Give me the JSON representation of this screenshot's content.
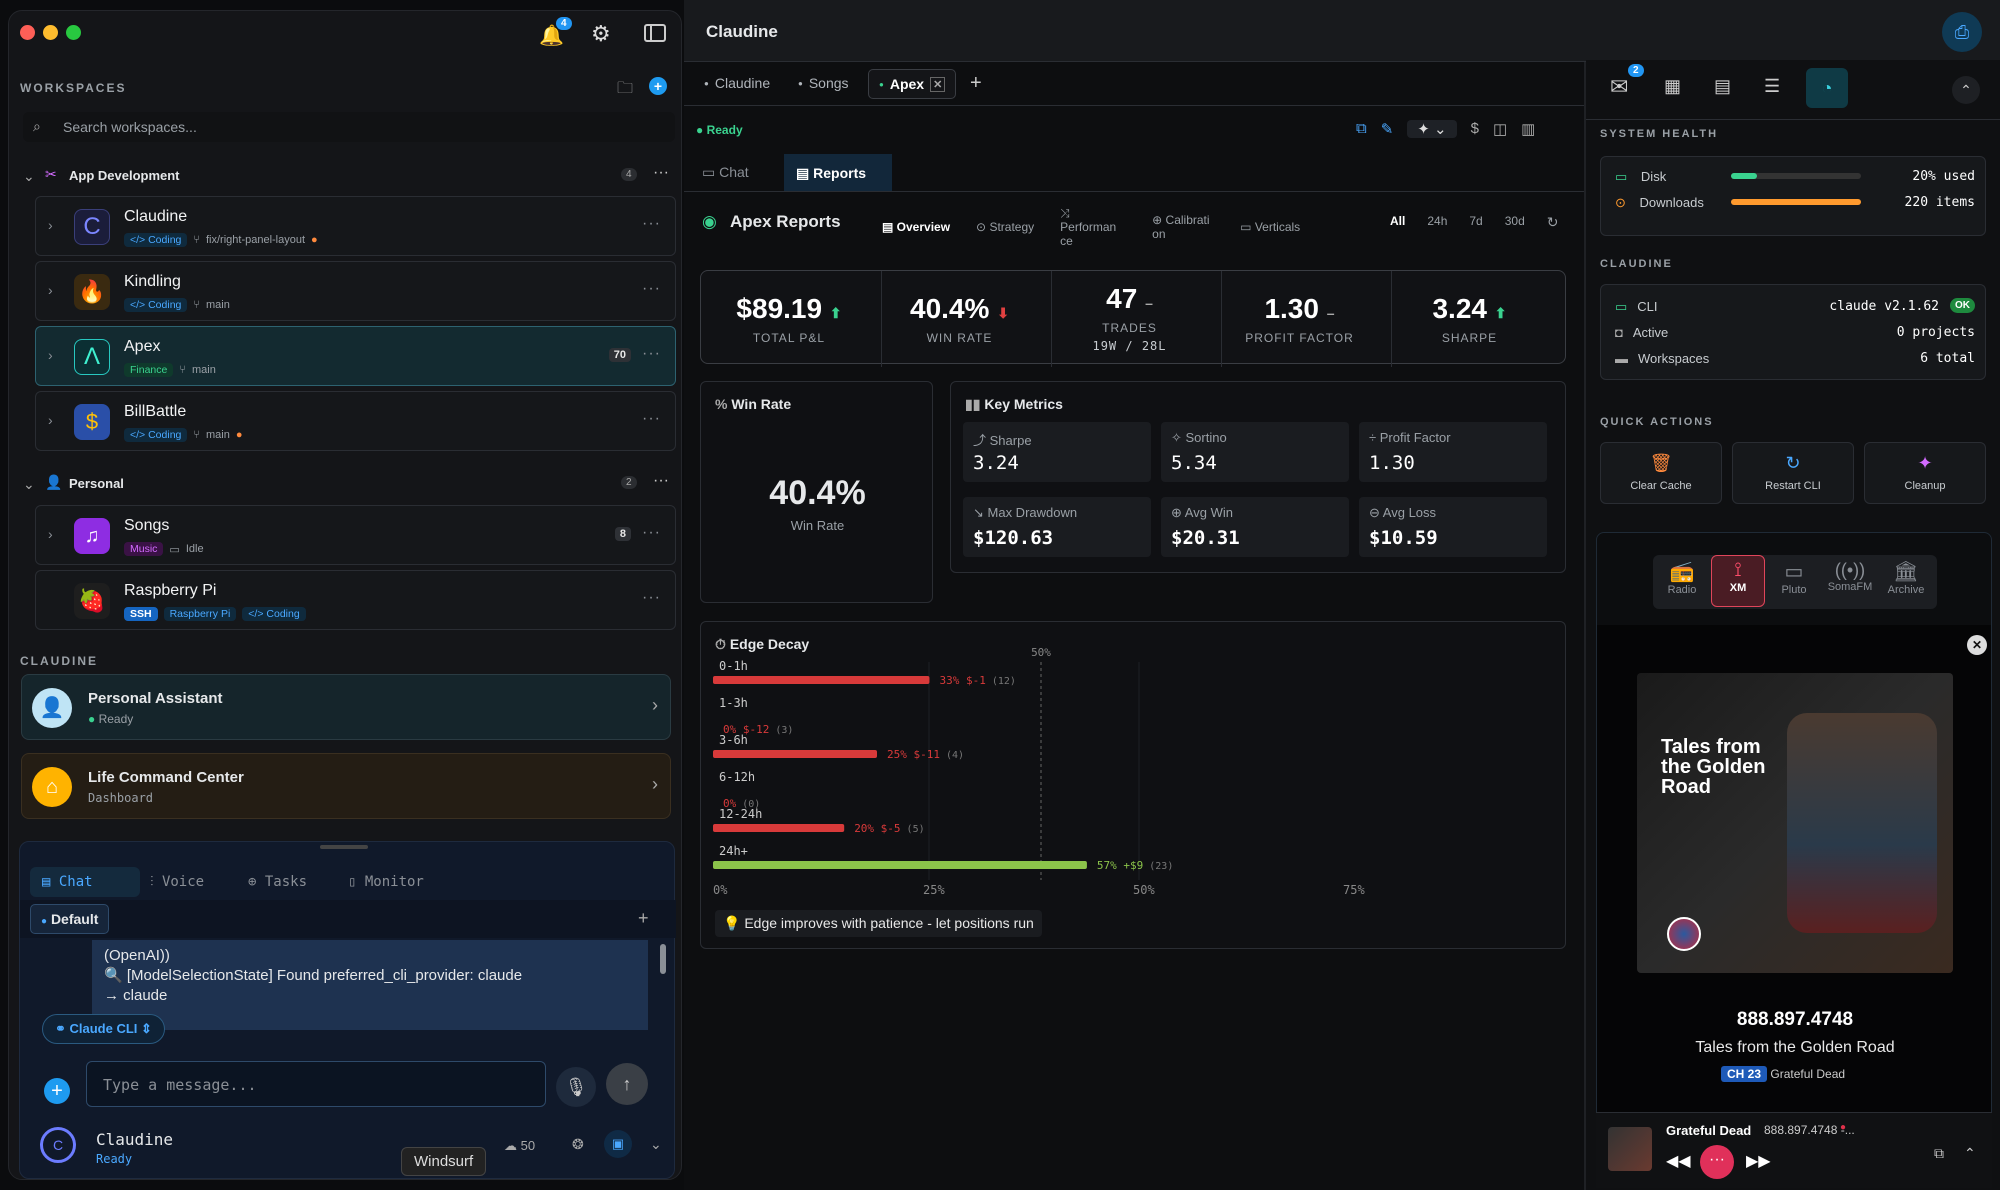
{
  "window": {
    "title": "Claudine"
  },
  "left": {
    "notif_count": "4",
    "workspaces_label": "WORKSPACES",
    "search_placeholder": "Search workspaces...",
    "groups": [
      {
        "name": "App Development",
        "count": "4"
      },
      {
        "name": "Personal",
        "count": "2"
      }
    ],
    "projects": [
      {
        "name": "Claudine",
        "tag": "</> Coding",
        "branch": "fix/right-panel-layout"
      },
      {
        "name": "Kindling",
        "tag": "</> Coding",
        "branch": "main"
      },
      {
        "name": "Apex",
        "tag": "Finance",
        "branch": "main",
        "badge": "70"
      },
      {
        "name": "BillBattle",
        "tag": "</> Coding",
        "branch": "main"
      },
      {
        "name": "Songs",
        "tag": "Music",
        "branch": "Idle",
        "badge": "8"
      },
      {
        "name": "Raspberry Pi",
        "tag": "SSH",
        "tag2": "Raspberry Pi",
        "tag3": "</> Coding"
      }
    ],
    "claudine_label": "CLAUDINE",
    "assistants": [
      {
        "name": "Personal Assistant",
        "sub": "Ready"
      },
      {
        "name": "Life Command Center",
        "sub": "Dashboard"
      }
    ],
    "chat_tabs": [
      "Chat",
      "Voice",
      "Tasks",
      "Monitor"
    ],
    "default_label": "Default",
    "log_text": "(OpenAI))",
    "log_text2": "🔍 [ModelSelectionState] Found preferred_cli_provider: claude",
    "log_text3": "→ claude",
    "provider": "Claude CLI",
    "message_placeholder": "Type a message...",
    "footer_name": "Claudine",
    "footer_status": "Ready",
    "footer_count": "50",
    "tooltip": "Windsurf"
  },
  "center": {
    "title": "Claudine",
    "tabs": [
      "Claudine",
      "Songs",
      "Apex"
    ],
    "status": "Ready",
    "subtabs": [
      "Chat",
      "Reports"
    ],
    "report_title": "Apex Reports",
    "report_tabs": [
      "Overview",
      "Strategy",
      "Performan ce",
      "Calibrati on",
      "Verticals"
    ],
    "ranges": [
      "All",
      "24h",
      "7d",
      "30d"
    ],
    "stats": [
      {
        "value": "$89.19",
        "label": "TOTAL P&L"
      },
      {
        "value": "40.4%",
        "label": "WIN RATE"
      },
      {
        "value": "47",
        "label": "TRADES",
        "sub": "19W / 28L"
      },
      {
        "value": "1.30",
        "label": "PROFIT FACTOR"
      },
      {
        "value": "3.24",
        "label": "SHARPE"
      }
    ],
    "winrate_title": "Win Rate",
    "winrate_value": "40.4%",
    "winrate_label": "Win Rate",
    "key_metrics_title": "Key Metrics",
    "metrics": [
      {
        "label": "Sharpe",
        "value": "3.24"
      },
      {
        "label": "Sortino",
        "value": "5.34"
      },
      {
        "label": "Profit Factor",
        "value": "1.30"
      },
      {
        "label": "Max Drawdown",
        "value": "$120.63"
      },
      {
        "label": "Avg Win",
        "value": "$20.31"
      },
      {
        "label": "Avg Loss",
        "value": "$10.59"
      }
    ],
    "edge_title": "Edge Decay",
    "edge_tip": "💡 Edge improves with patience - let positions run"
  },
  "chart_data": {
    "type": "bar",
    "title": "Edge Decay",
    "categories": [
      "0-1h",
      "1-3h",
      "3-6h",
      "6-12h",
      "12-24h",
      "24h+"
    ],
    "values": [
      33,
      0,
      25,
      0,
      20,
      57
    ],
    "pnl": [
      "$-1",
      "$-12",
      "$-11",
      "",
      "$-5",
      "+$9"
    ],
    "counts": [
      "(12)",
      "(3)",
      "(4)",
      "(0)",
      "(5)",
      "(23)"
    ],
    "xticks": [
      "0%",
      "25%",
      "50%",
      "75%"
    ],
    "reference": "50%",
    "xlim": [
      0,
      100
    ],
    "colors": {
      "loss": "#d83a3a",
      "win": "#8bc34a"
    }
  },
  "right": {
    "mail_count": "2",
    "system_health_label": "SYSTEM HEALTH",
    "disk": {
      "label": "Disk",
      "value": "20% used",
      "fill": 0.2
    },
    "downloads": {
      "label": "Downloads",
      "value": "220 items",
      "fill": 1.0
    },
    "claudine_label": "CLAUDINE",
    "cli": {
      "label": "CLI",
      "value": "claude v2.1.62",
      "status": "OK"
    },
    "active": {
      "label": "Active",
      "value": "0 projects"
    },
    "workspaces": {
      "label": "Workspaces",
      "value": "6 total"
    },
    "quick_actions_label": "QUICK ACTIONS",
    "actions": [
      "Clear Cache",
      "Restart CLI",
      "Cleanup"
    ],
    "radio_tabs": [
      "Radio",
      "XM",
      "Pluto",
      "SomaFM",
      "Archive"
    ],
    "album_title": "Tales from the Golden Road",
    "phone": "888.897.4748",
    "track": "Tales from the Golden Road",
    "channel": "CH 23",
    "artist": "Grateful Dead",
    "now_artist": "Grateful Dead",
    "now_phone": "888.897.4748 -..."
  }
}
